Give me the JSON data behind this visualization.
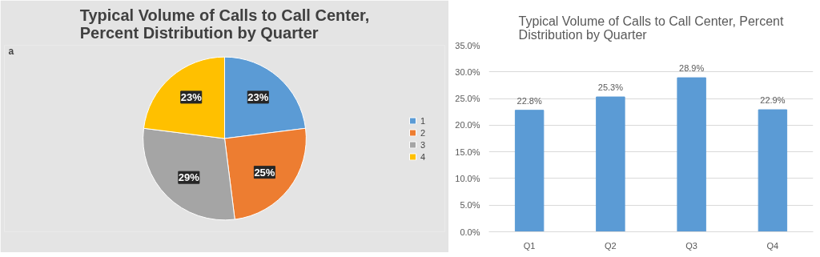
{
  "chart_data": [
    {
      "type": "pie",
      "title": "Typical Volume of Calls to Call Center, Percent Distribution by Quarter",
      "annotations": [
        "a"
      ],
      "categories": [
        "1",
        "2",
        "3",
        "4"
      ],
      "values": [
        23,
        25,
        29,
        23
      ],
      "colors": [
        "#5b9bd5",
        "#ed7d31",
        "#a5a5a5",
        "#ffc000"
      ],
      "value_labels": [
        "23%",
        "25%",
        "29%",
        "23%"
      ],
      "legend": "right"
    },
    {
      "type": "bar",
      "title": "Typical Volume of Calls to Call Center, Percent Distribution by Quarter",
      "categories": [
        "Q1",
        "Q2",
        "Q3",
        "Q4"
      ],
      "values": [
        22.8,
        25.3,
        28.9,
        22.9
      ],
      "color": "#5b9bd5",
      "value_labels": [
        "22.8%",
        "25.3%",
        "28.9%",
        "22.9%"
      ],
      "ylim": [
        0,
        35
      ],
      "yticks": [
        {
          "value": 0,
          "label": "0.0%"
        },
        {
          "value": 5,
          "label": "5.0%"
        },
        {
          "value": 10,
          "label": "10.0%"
        },
        {
          "value": 15,
          "label": "15.0%"
        },
        {
          "value": 20,
          "label": "20.0%"
        },
        {
          "value": 25,
          "label": "25.0%"
        },
        {
          "value": 30,
          "label": "30.0%"
        },
        {
          "value": 35,
          "label": "35.0%"
        }
      ],
      "grid": "y"
    }
  ]
}
